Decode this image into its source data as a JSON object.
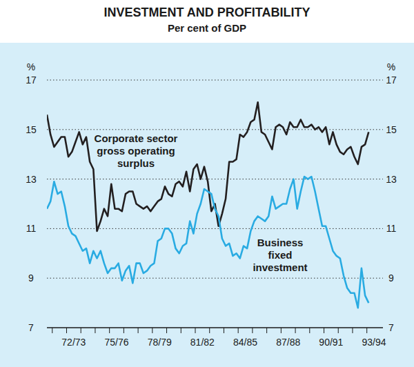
{
  "chart_data": {
    "type": "line",
    "title": "INVESTMENT AND PROFITABILITY",
    "subtitle": "Per cent of GDP",
    "y_unit_label": "%",
    "categories": [
      null,
      null,
      null,
      null,
      null,
      null,
      null,
      "72/73",
      null,
      null,
      null,
      null,
      null,
      null,
      null,
      null,
      null,
      null,
      null,
      "75/76",
      null,
      null,
      null,
      null,
      null,
      null,
      null,
      null,
      null,
      null,
      null,
      "78/79",
      null,
      null,
      null,
      null,
      null,
      null,
      null,
      null,
      null,
      null,
      null,
      "81/82",
      null,
      null,
      null,
      null,
      null,
      null,
      null,
      null,
      null,
      null,
      null,
      "84/85",
      null,
      null,
      null,
      null,
      null,
      null,
      null,
      null,
      null,
      null,
      null,
      "87/88",
      null,
      null,
      null,
      null,
      null,
      null,
      null,
      null,
      null,
      null,
      null,
      "90/91",
      null,
      null,
      null,
      null,
      null,
      null,
      null,
      null,
      null,
      null,
      null,
      "93/94"
    ],
    "series": [
      {
        "name": "Corporate sector\ngross operating\nsurplus",
        "color": "#231f20",
        "values": [
          15.6,
          14.8,
          14.3,
          14.5,
          14.7,
          14.7,
          13.9,
          14.1,
          14.5,
          14.9,
          14.4,
          14.7,
          13.7,
          13.4,
          10.9,
          11.3,
          11.8,
          11.5,
          12.8,
          11.8,
          11.8,
          11.7,
          12.4,
          12.5,
          12.5,
          12.0,
          11.9,
          11.8,
          11.9,
          11.7,
          11.9,
          12.1,
          12.2,
          12.7,
          12.4,
          12.3,
          12.8,
          12.9,
          12.7,
          13.3,
          12.5,
          13.4,
          13.6,
          13.0,
          13.5,
          12.9,
          11.7,
          12.0,
          11.1,
          11.6,
          12.2,
          13.7,
          13.7,
          13.8,
          14.8,
          14.7,
          14.9,
          15.3,
          15.4,
          16.1,
          14.9,
          14.8,
          14.5,
          14.2,
          15.1,
          15.2,
          15.1,
          14.8,
          15.3,
          15.1,
          15.1,
          15.4,
          15.1,
          15.1,
          15.2,
          15.0,
          15.1,
          14.9,
          15.1,
          14.4,
          14.9,
          14.4,
          14.1,
          14.0,
          14.2,
          14.3,
          13.9,
          13.6,
          14.3,
          14.4,
          14.9,
          null
        ]
      },
      {
        "name": "Business\nfixed\ninvestment",
        "color": "#29abe2",
        "values": [
          11.8,
          12.1,
          12.9,
          12.4,
          12.5,
          11.9,
          11.1,
          10.8,
          10.7,
          10.4,
          10.1,
          10.2,
          9.6,
          10.1,
          9.8,
          10.1,
          9.6,
          9.2,
          9.4,
          9.4,
          9.6,
          8.9,
          9.3,
          9.5,
          8.8,
          9.6,
          9.6,
          9.2,
          9.3,
          9.5,
          9.6,
          10.5,
          10.6,
          11.0,
          11.0,
          10.8,
          10.2,
          10.0,
          10.3,
          10.4,
          11.3,
          10.8,
          11.6,
          12.0,
          12.6,
          12.5,
          12.4,
          11.8,
          11.5,
          10.6,
          10.3,
          10.4,
          9.9,
          10.0,
          9.8,
          10.3,
          10.2,
          10.9,
          11.3,
          11.5,
          11.4,
          11.3,
          11.5,
          12.3,
          11.8,
          11.9,
          12.0,
          12.0,
          12.6,
          13.0,
          11.8,
          12.5,
          13.1,
          13.0,
          13.1,
          12.5,
          11.8,
          11.1,
          11.1,
          10.6,
          10.1,
          9.9,
          9.8,
          9.1,
          8.6,
          8.4,
          8.4,
          7.8,
          9.4,
          8.3,
          8.0,
          null
        ]
      }
    ],
    "ylim": [
      7,
      17
    ],
    "yticks": [
      7,
      9,
      11,
      13,
      15,
      17
    ],
    "grid": true
  }
}
